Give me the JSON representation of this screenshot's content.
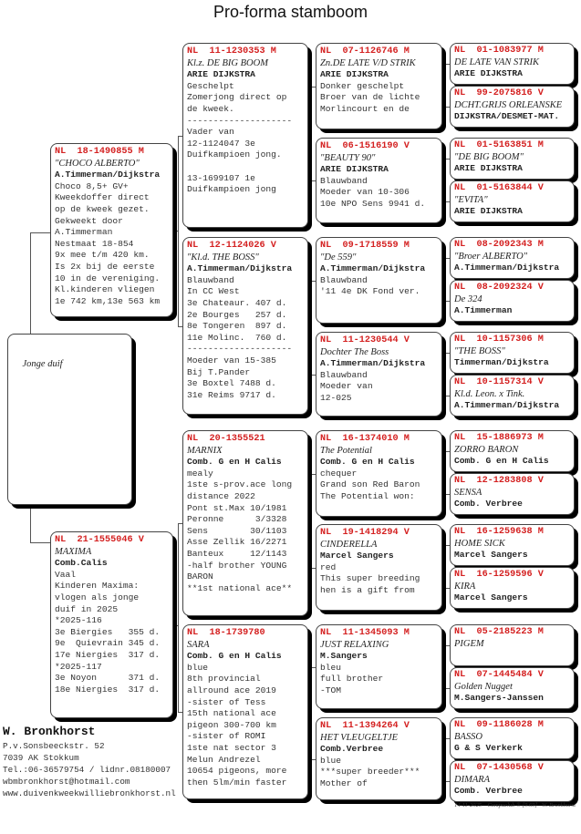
{
  "title": "Pro-forma stamboom",
  "subject": {
    "label": "Jonge duif"
  },
  "father": {
    "ring": "NL  18-1490855 M",
    "name": "\"CHOCO ALBERTO\"",
    "owner": "A.Timmerman/Dijkstra",
    "lines": [
      "Choco 8,5+ GV+",
      "Kweekdoffer direct",
      "op de kweek gezet.",
      "Gekweekt door",
      "A.Timmerman",
      "Nestmaat 18-854",
      "9x mee t/m 420 km.",
      "Is 2x bij de eerste",
      "10 in de vereniging.",
      "Kl.kinderen vliegen",
      "1e 742 km,13e 563 km"
    ]
  },
  "mother": {
    "ring": "NL  21-1555046 V",
    "name": "MAXIMA",
    "owner": "Comb.Calis",
    "lines": [
      "Vaal",
      "Kinderen Maxima:",
      "vlogen als jonge",
      "duif in 2025",
      "*2025-116",
      "3e Biergies   355 d.",
      "9e  Quievrain 345 d.",
      "17e Niergies  317 d.",
      "*2025-117",
      "3e Noyon      371 d.",
      "18e Niergies  317 d."
    ]
  },
  "gen2": [
    {
      "ring": "NL  11-1230353 M",
      "name": "Kl.z. DE BIG BOOM",
      "owner": "ARIE DIJKSTRA",
      "lines": [
        "Geschelpt",
        "Zomerjong direct op",
        "de kweek.",
        "--------------------",
        "Vader van",
        "12-1124047 3e",
        "Duifkampioen jong.",
        " ",
        "13-1699107 1e",
        "Duifkampioen jong"
      ]
    },
    {
      "ring": "NL  12-1124026 V",
      "name": "\"Kl.d. THE BOSS\"",
      "owner": "A.Timmerman/Dijkstra",
      "lines": [
        "Blauwband",
        "In CC West",
        "3e Chateaur. 407 d.",
        "2e Bourges   257 d.",
        "8e Tongeren  897 d.",
        "11e Molinc.  760 d.",
        "--------------------",
        "Moeder van 15-385",
        "Bij T.Pander",
        "3e Boxtel 7488 d.",
        "31e Reims 9717 d."
      ]
    },
    {
      "ring": "NL  20-1355521",
      "name": "MARNIX",
      "owner": "Comb. G en H Calis",
      "lines": [
        "mealy",
        "1ste s-prov.ace long",
        "distance 2022",
        "Pont st.Max 10/1981",
        "Peronne      3/3328",
        "Sens        30/1103",
        "Asse Zellik 16/2271",
        "Banteux     12/1143",
        "-half brother YOUNG",
        "BARON",
        "**1st national ace**"
      ]
    },
    {
      "ring": "NL  18-1739780",
      "name": "SARA",
      "owner": "Comb. G en H Calis",
      "lines": [
        "blue",
        "8th provincial",
        "allround ace 2019",
        "-sister of Tess",
        "15th national ace",
        "pigeon 300-700 km",
        "-sister of ROMI",
        "1ste nat sector 3",
        "Melun Andrezel",
        "10654 pigeons, more",
        "then 5lm/min faster"
      ]
    }
  ],
  "gen3": [
    {
      "ring": "NL  07-1126746 M",
      "name": "Zn.DE LATE V/D STRIK",
      "owner": "ARIE DIJKSTRA",
      "lines": [
        "Donker geschelpt",
        "Broer van de lichte",
        "Morlincourt en de"
      ]
    },
    {
      "ring": "NL  06-1516190 V",
      "name": "\"BEAUTY 90\"",
      "owner": "ARIE DIJKSTRA",
      "lines": [
        "Blauwband",
        "Moeder van 10-306",
        "10e NPO Sens 9941 d."
      ]
    },
    {
      "ring": "NL  09-1718559 M",
      "name": "\"De 559\"",
      "owner": "A.Timmerman/Dijkstra",
      "lines": [
        "Blauwband",
        "'11 4e DK Fond ver."
      ]
    },
    {
      "ring": "NL  11-1230544 V",
      "name": "Dochter The Boss",
      "owner": "A.Timmerman/Dijkstra",
      "lines": [
        "Blauwband",
        "Moeder van",
        "12-025"
      ]
    },
    {
      "ring": "NL  16-1374010 M",
      "name": "The Potential",
      "owner": "Comb. G en H Calis",
      "lines": [
        "chequer",
        "Grand son Red Baron",
        "The Potential won:"
      ]
    },
    {
      "ring": "NL  19-1418294 V",
      "name": "CINDERELLA",
      "owner": "Marcel Sangers",
      "lines": [
        "red",
        "This super breeding",
        "hen is a gift from"
      ]
    },
    {
      "ring": "NL  11-1345093 M",
      "name": "JUST RELAXING",
      "owner": "M.Sangers",
      "lines": [
        "bleu",
        "full brother",
        "-TOM"
      ]
    },
    {
      "ring": "NL  11-1394264 V",
      "name": "HET VLEUGELTJE",
      "owner": "Comb.Verbree",
      "lines": [
        "blue",
        "***super breeder***",
        "Mother of"
      ]
    }
  ],
  "gen4": [
    {
      "ring": "NL  01-1083977 M",
      "name": "DE LATE VAN STRIK",
      "owner": "ARIE DIJKSTRA",
      "lines": []
    },
    {
      "ring": "NL  99-2075816 V",
      "name": "DCHT.GRIJS ORLEANSKE",
      "owner": "DIJKSTRA/DESMET-MAT.",
      "lines": []
    },
    {
      "ring": "NL  01-5163851 M",
      "name": "\"DE BIG BOOM\"",
      "owner": "ARIE DIJKSTRA",
      "lines": []
    },
    {
      "ring": "NL  01-5163844 V",
      "name": "\"EVITA\"",
      "owner": "ARIE DIJKSTRA",
      "lines": []
    },
    {
      "ring": "NL  08-2092343 M",
      "name": "\"Broer ALBERTO\"",
      "owner": "A.Timmerman/Dijkstra",
      "lines": []
    },
    {
      "ring": "NL  08-2092324 V",
      "name": "De 324",
      "owner": "A.Timmerman",
      "lines": []
    },
    {
      "ring": "NL  10-1157306 M",
      "name": "\"THE BOSS\"",
      "owner": "Timmerman/Dijkstra",
      "lines": []
    },
    {
      "ring": "NL  10-1157314 V",
      "name": "Kl.d. Leon. x Tink.",
      "owner": "A.Timmerman/Dijkstra",
      "lines": []
    },
    {
      "ring": "NL  15-1886973 M",
      "name": "ZORRO BARON",
      "owner": "Comb. G en H Calis",
      "lines": []
    },
    {
      "ring": "NL  12-1283808 V",
      "name": "SENSA",
      "owner": "Comb. Verbree",
      "lines": []
    },
    {
      "ring": "NL  16-1259638 M",
      "name": "HOME SICK",
      "owner": "Marcel Sangers",
      "lines": []
    },
    {
      "ring": "NL  16-1259596 V",
      "name": "KIRA",
      "owner": "Marcel Sangers",
      "lines": []
    },
    {
      "ring": "NL  05-2185223 M",
      "name": "PIGEM",
      "owner": "",
      "lines": []
    },
    {
      "ring": "NL  07-1445484 V",
      "name": "Golden Nugget",
      "owner": "M.Sangers-Janssen",
      "lines": []
    },
    {
      "ring": "NL  09-1186028 M",
      "name": "BASSO",
      "owner": "G & S Verkerk",
      "lines": []
    },
    {
      "ring": "NL  07-1430568 V",
      "name": "DIMARA",
      "owner": "Comb. Verbree",
      "lines": []
    }
  ],
  "breeder": {
    "name": "W. Bronkhorst",
    "address": "P.v.Sonsbeeckstr. 52",
    "city": "7039 AK  Stokkum",
    "phone": "Tel.:06-36579754 / lidnr.08180007",
    "email": "wbmbronkhorst@hotmail.com",
    "website": "www.duivenkweekwilliebronkhorst.nl"
  },
  "footer": {
    "date": "14-11-2025",
    "software": "Compuclub ® [9.69]",
    "author": "W. Bronkhorst"
  }
}
